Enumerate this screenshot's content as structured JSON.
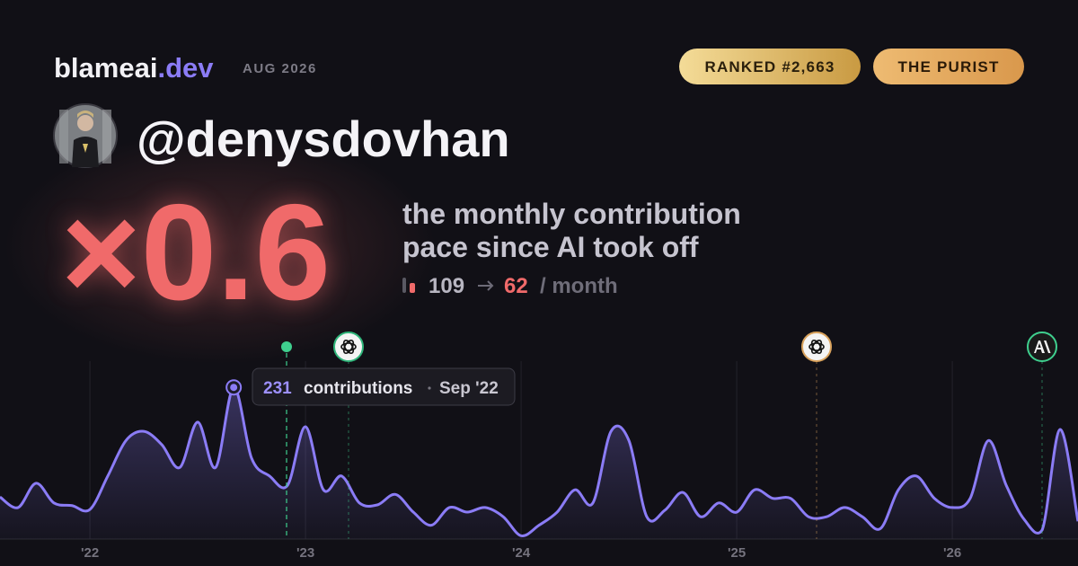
{
  "header": {
    "brand": "blameai",
    "brand_suffix": ".dev",
    "date": "AUG 2026",
    "badges": [
      "RANKED #2,663",
      "THE PURIST"
    ]
  },
  "user": {
    "handle": "@denysdovhan"
  },
  "headline": {
    "multiplier": "×0.6",
    "line1": "the monthly contribution",
    "line2": "pace since AI took off",
    "before": 109,
    "after": 62,
    "unit": "/ month"
  },
  "tooltip": {
    "unit": "contributions",
    "date": "Sep '22"
  },
  "chart_data": {
    "type": "line",
    "x": [
      2021.583,
      2021.667,
      2021.75,
      2021.833,
      2021.917,
      2022,
      2022.083,
      2022.167,
      2022.25,
      2022.333,
      2022.417,
      2022.5,
      2022.583,
      2022.667,
      2022.75,
      2022.833,
      2022.917,
      2023,
      2023.083,
      2023.167,
      2023.25,
      2023.333,
      2023.417,
      2023.5,
      2023.583,
      2023.667,
      2023.75,
      2023.833,
      2023.917,
      2024,
      2024.083,
      2024.167,
      2024.25,
      2024.333,
      2024.417,
      2024.5,
      2024.583,
      2024.667,
      2024.75,
      2024.833,
      2024.917,
      2025,
      2025.083,
      2025.167,
      2025.25,
      2025.333,
      2025.417,
      2025.5,
      2025.583,
      2025.667,
      2025.75,
      2025.833,
      2025.917,
      2026,
      2026.083,
      2026.167,
      2026.25,
      2026.333,
      2026.417,
      2026.5,
      2026.583
    ],
    "series": [
      {
        "name": "contributions",
        "color": "#8b7cf6",
        "values": [
          64,
          48,
          85,
          55,
          51,
          45,
          96,
          150,
          164,
          144,
          109,
          178,
          109,
          231,
          123,
          96,
          82,
          171,
          75,
          96,
          55,
          52,
          68,
          41,
          21,
          48,
          41,
          48,
          34,
          5,
          21,
          41,
          75,
          55,
          164,
          150,
          34,
          44,
          71,
          34,
          55,
          41,
          75,
          62,
          62,
          34,
          34,
          48,
          34,
          16,
          75,
          96,
          62,
          48,
          62,
          150,
          82,
          30,
          14,
          167,
          27
        ]
      }
    ],
    "xlim": [
      2021.583,
      2026.583
    ],
    "ylim": [
      0,
      260
    ],
    "xticks": [
      {
        "value": 2022,
        "label": "'22"
      },
      {
        "value": 2023,
        "label": "'23"
      },
      {
        "value": 2024,
        "label": "'24"
      },
      {
        "value": 2025,
        "label": "'25"
      },
      {
        "value": 2026,
        "label": "'26"
      }
    ],
    "grid": true
  }
}
